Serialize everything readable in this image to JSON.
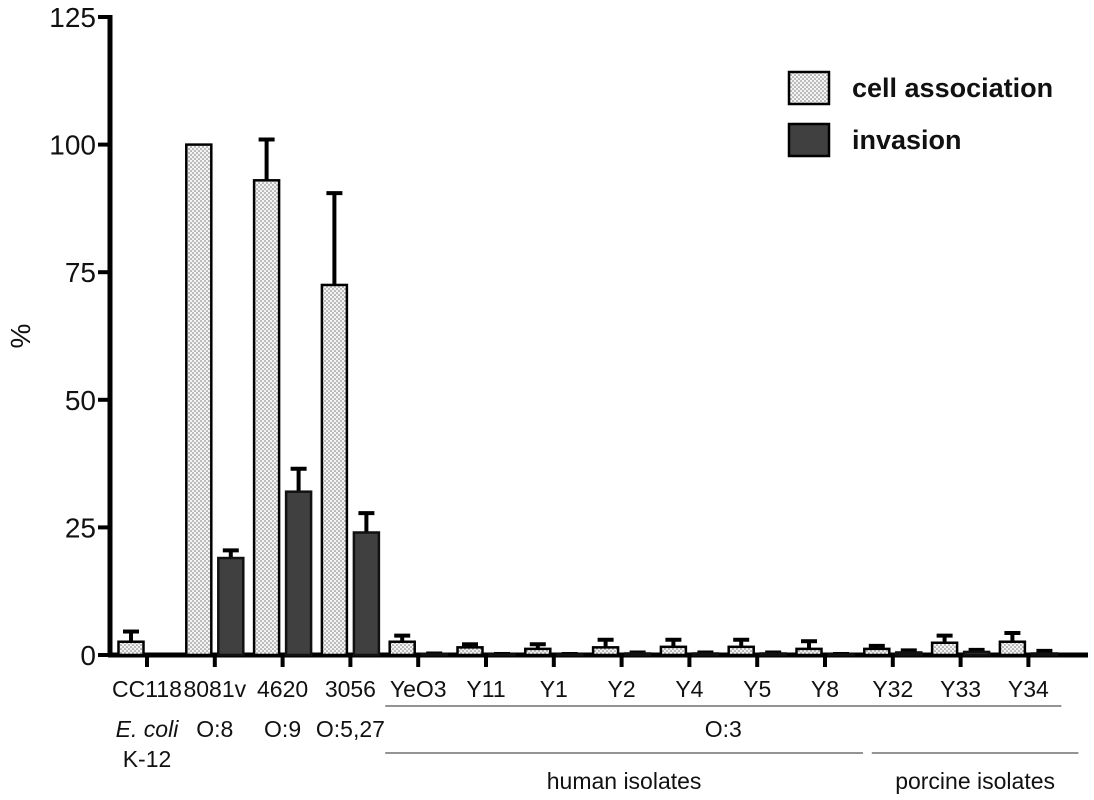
{
  "chart_data": {
    "type": "bar",
    "ylabel": "%",
    "ylim": [
      0,
      125
    ],
    "yticks": [
      "0",
      "25",
      "50",
      "75",
      "100",
      "125"
    ],
    "grid": false,
    "legend_position": "top-right",
    "categories": [
      "CC118",
      "8081v",
      "4620",
      "3056",
      "YeO3",
      "Y11",
      "Y1",
      "Y2",
      "Y4",
      "Y5",
      "Y8",
      "Y32",
      "Y33",
      "Y34"
    ],
    "series": [
      {
        "name": "cell association",
        "fill": "dotted-light",
        "values": [
          2.6,
          100,
          93,
          72.5,
          2.6,
          1.5,
          1.2,
          1.5,
          1.6,
          1.6,
          1.2,
          1.2,
          2.4,
          2.6
        ],
        "errors": [
          2.0,
          0,
          8,
          18,
          1.2,
          0.6,
          0.9,
          1.5,
          1.4,
          1.4,
          1.5,
          0.6,
          1.4,
          1.7
        ]
      },
      {
        "name": "invasion",
        "fill": "#404040",
        "values": [
          0,
          19,
          32,
          24,
          0.2,
          0.1,
          0.1,
          0.3,
          0.3,
          0.3,
          0.1,
          0.5,
          0.6,
          0.3
        ],
        "errors": [
          0,
          1.5,
          4.5,
          3.8,
          0.1,
          0.1,
          0.1,
          0.2,
          0.2,
          0.2,
          0.1,
          0.4,
          0.4,
          0.5
        ]
      }
    ],
    "annotations": {
      "row1": [
        {
          "text": "E. coli",
          "italic": true,
          "cat": 0
        },
        {
          "text": "O:8",
          "cat": 1
        },
        {
          "text": "O:9",
          "cat": 2
        },
        {
          "text": "O:5,27",
          "cat": 3
        },
        {
          "text": "O:3",
          "cat": 8.5
        }
      ],
      "row2": [
        {
          "text": "K-12",
          "cat": 0
        }
      ],
      "groups": [
        {
          "text": "human isolates",
          "from": 4,
          "to": 10
        },
        {
          "text": "porcine isolates",
          "from": 11,
          "to": 13
        }
      ]
    }
  }
}
